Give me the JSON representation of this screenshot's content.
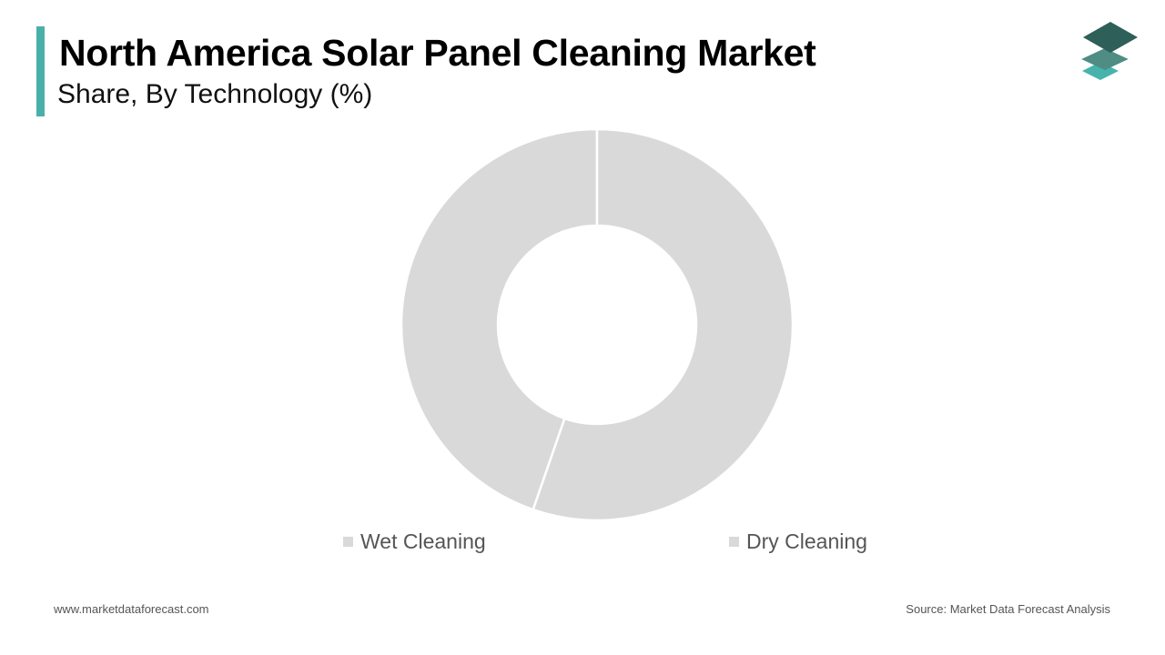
{
  "header": {
    "title": "North America Solar Panel Cleaning Market",
    "subtitle": "Share, By Technology (%)"
  },
  "colors": {
    "accent": "#4AAFAA",
    "logo_top": "#2E5F58",
    "logo_mid": "#4E8C84",
    "logo_bottom": "#47B3AC",
    "slice": "#D9D9D9",
    "separator": "#FFFFFF",
    "legend_text": "#555555"
  },
  "logo": {
    "icon": "stacked-layers-icon"
  },
  "chart_data": {
    "type": "pie",
    "donut": true,
    "categories": [
      "Wet Cleaning",
      "Dry Cleaning"
    ],
    "values": [
      44.7,
      55.3
    ],
    "start": "12 o'clock",
    "direction": "counter-clockwise",
    "legend": "bottom"
  },
  "footer": {
    "website": "www.marketdataforecast.com",
    "source": "Source: Market Data Forecast Analysis"
  }
}
